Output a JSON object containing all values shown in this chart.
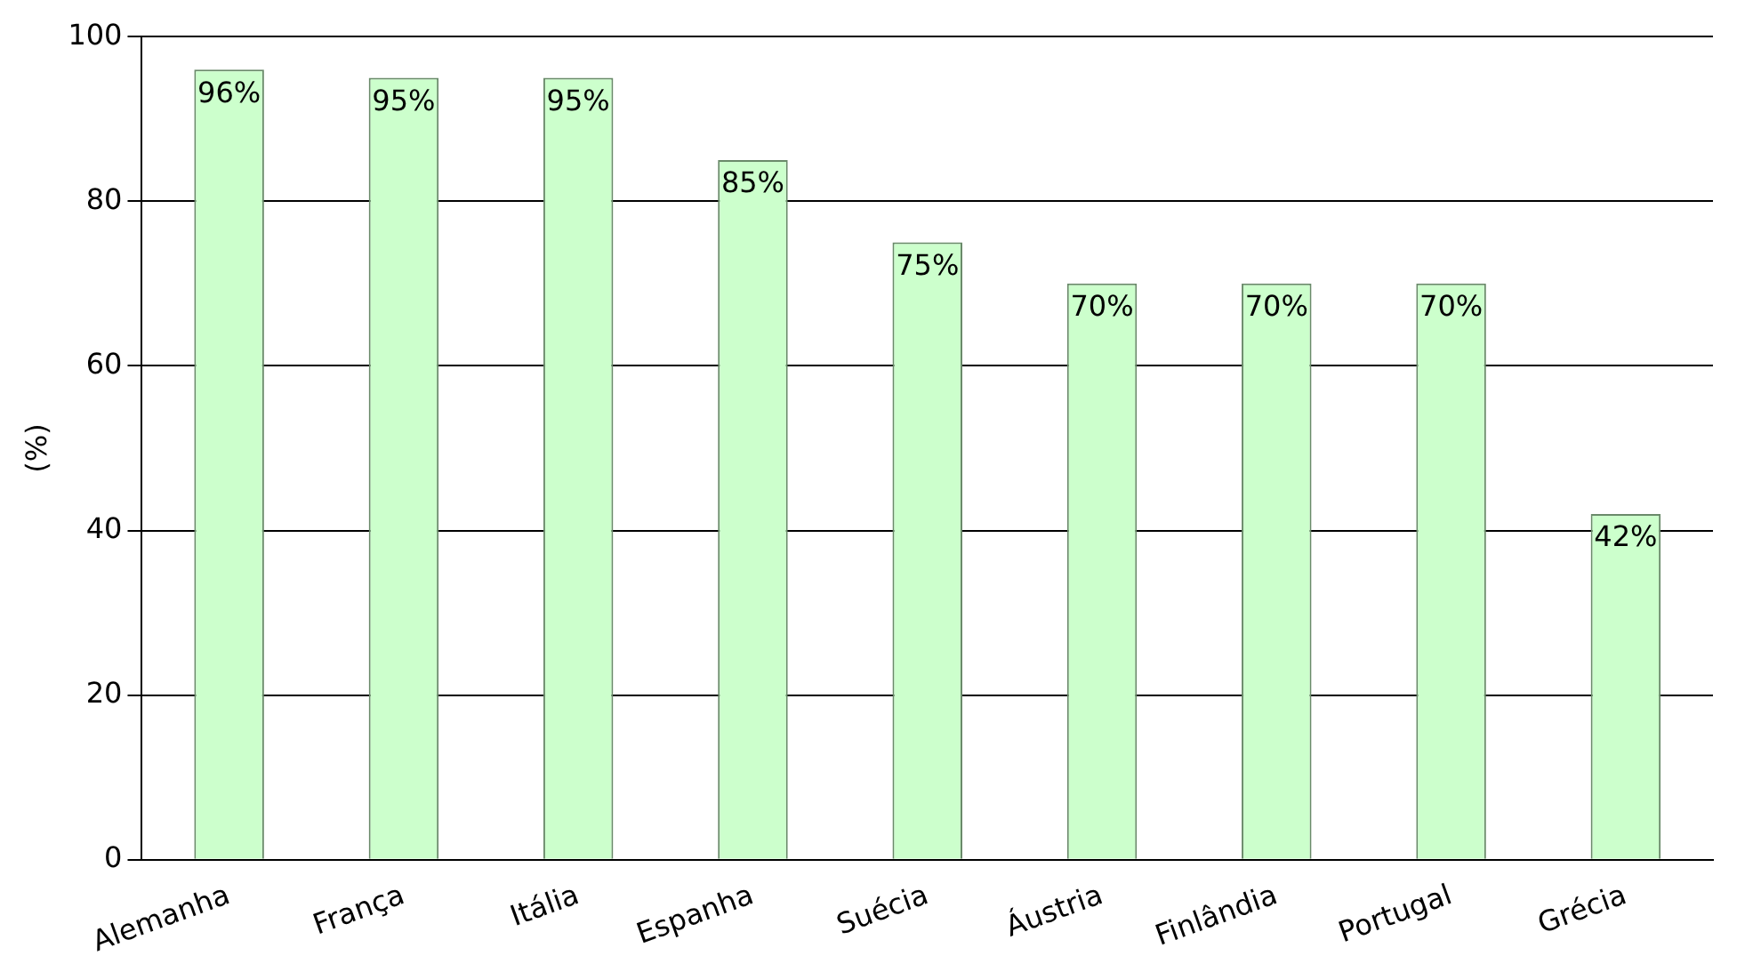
{
  "chart_data": {
    "type": "bar",
    "ylabel": "(%)",
    "categories": [
      "Alemanha",
      "França",
      "Itália",
      "Espanha",
      "Suécia",
      "Áustria",
      "Finlândia",
      "Portugal",
      "Grécia"
    ],
    "values": [
      96,
      95,
      95,
      85,
      75,
      70,
      70,
      70,
      42
    ],
    "value_labels": [
      "96%",
      "95%",
      "95%",
      "85%",
      "75%",
      "70%",
      "70%",
      "70%",
      "42%"
    ],
    "color": "#ccffcc",
    "ylim": [
      0,
      100
    ],
    "yticks": [
      0,
      20,
      40,
      60,
      80,
      100
    ],
    "grid": "y",
    "legend": false
  }
}
